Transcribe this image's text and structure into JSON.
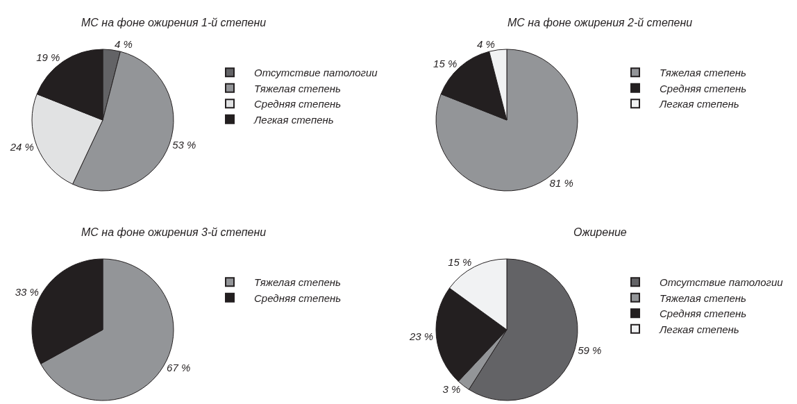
{
  "chart_data": [
    {
      "type": "pie",
      "title": "МС на фоне ожирения 1-й степени",
      "categories": [
        "Отсутствие патологии",
        "Тяжелая степень",
        "Средняя степень",
        "Легкая степень"
      ],
      "values": [
        4,
        53,
        24,
        19
      ],
      "colors": [
        "#636366",
        "#939598",
        "#e1e2e3",
        "#231f20"
      ],
      "value_labels": [
        "4 %",
        "53 %",
        "24 %",
        "19 %"
      ],
      "legend": "right"
    },
    {
      "type": "pie",
      "title": "МС на фоне ожирения 2-й степени",
      "categories": [
        "Тяжелая степень",
        "Средняя степень",
        "Легкая степень"
      ],
      "values": [
        81,
        15,
        4
      ],
      "colors": [
        "#939598",
        "#231f20",
        "#f1f2f3"
      ],
      "value_labels": [
        "81 %",
        "15 %",
        "4 %"
      ],
      "legend": "right"
    },
    {
      "type": "pie",
      "title": "МС на фоне ожирения 3-й степени",
      "categories": [
        "Тяжелая степень",
        "Средняя степень"
      ],
      "values": [
        67,
        33
      ],
      "colors": [
        "#939598",
        "#231f20"
      ],
      "value_labels": [
        "67 %",
        "33 %"
      ],
      "legend": "right"
    },
    {
      "type": "pie",
      "title": "Ожирение",
      "categories": [
        "Отсутствие патологии",
        "Тяжелая степень",
        "Средняя степень",
        "Легкая степень"
      ],
      "values": [
        59,
        3,
        23,
        15
      ],
      "colors": [
        "#636366",
        "#939598",
        "#231f20",
        "#f1f2f3"
      ],
      "value_labels": [
        "59 %",
        "3 %",
        "23 %",
        "15 %"
      ],
      "legend": "right"
    }
  ]
}
